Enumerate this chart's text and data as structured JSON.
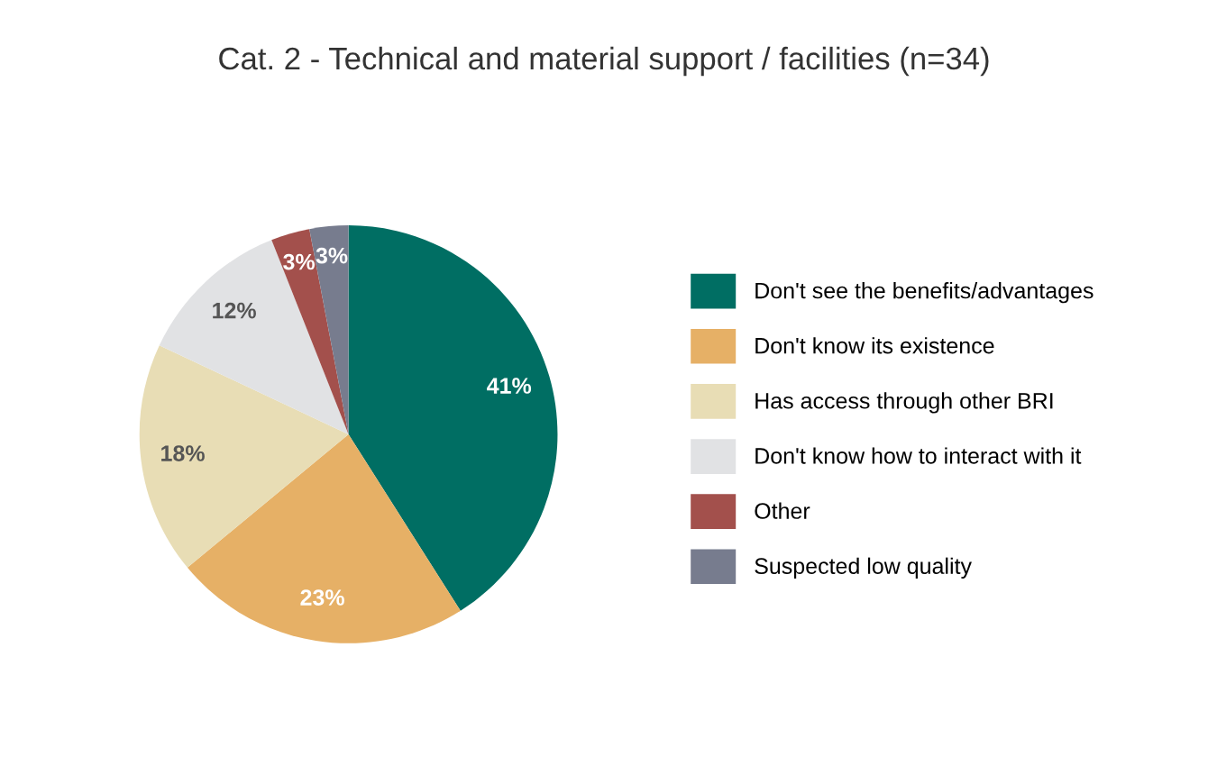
{
  "chart_data": {
    "type": "pie",
    "title": "Cat. 2 - Technical and material support / facilities (n=34)",
    "categories": [
      "Don't see the benefits/advantages",
      "Don't know its existence",
      "Has access through other BRI",
      "Don't know how to interact with it",
      "Other",
      "Suspected low quality"
    ],
    "values": [
      41,
      23,
      18,
      12,
      3,
      3
    ],
    "colors": [
      "#006e63",
      "#e6b066",
      "#e8ddb5",
      "#e1e2e4",
      "#a3504c",
      "#777c8e"
    ],
    "value_labels": [
      "41%",
      "23%",
      "18%",
      "12%",
      "3%",
      "3%"
    ],
    "legend": "right"
  }
}
